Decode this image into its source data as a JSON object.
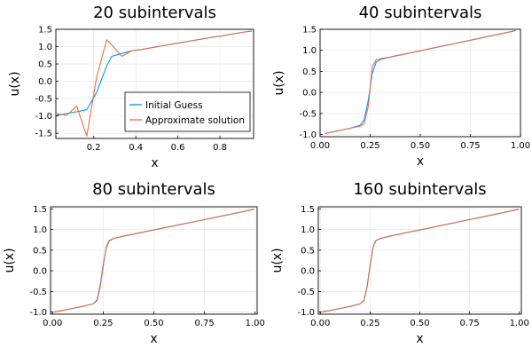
{
  "chart_data": [
    {
      "type": "line",
      "title": "20 subintervals",
      "xlabel": "x",
      "ylabel": "u(x)",
      "xlim": [
        0.02,
        0.96
      ],
      "ylim": [
        -1.65,
        1.5
      ],
      "xticks": [
        0.2,
        0.4,
        0.6,
        0.8
      ],
      "xtick_labels": [
        "0.2",
        "0.4",
        "0.6",
        "0.8"
      ],
      "yticks": [
        -1.5,
        -1.0,
        -0.5,
        0.0,
        0.5,
        1.0,
        1.5
      ],
      "ytick_labels": [
        "-1.5",
        "-1.0",
        "-0.5",
        "0.0",
        "0.5",
        "1.0",
        "1.5"
      ],
      "grid": true,
      "legend": "bottom-right",
      "series": [
        {
          "name": "Initial Guess",
          "color": "#009AFA",
          "x": [
            0.024,
            0.071,
            0.119,
            0.167,
            0.214,
            0.262,
            0.286,
            0.333,
            0.381,
            0.429,
            0.476,
            0.524,
            0.571,
            0.619,
            0.667,
            0.714,
            0.762,
            0.81,
            0.857,
            0.905,
            0.952
          ],
          "y": [
            -0.98,
            -0.93,
            -0.88,
            -0.82,
            -0.32,
            0.45,
            0.72,
            0.8,
            0.88,
            0.92,
            0.97,
            1.02,
            1.07,
            1.12,
            1.17,
            1.22,
            1.27,
            1.31,
            1.36,
            1.41,
            1.45
          ]
        },
        {
          "name": "Approximate solution",
          "color": "#E36F47",
          "x": [
            0.024,
            0.071,
            0.119,
            0.167,
            0.214,
            0.262,
            0.286,
            0.333,
            0.381,
            0.429,
            0.476,
            0.524,
            0.571,
            0.619,
            0.667,
            0.714,
            0.762,
            0.81,
            0.857,
            0.905,
            0.952
          ],
          "y": [
            -0.93,
            -0.98,
            -0.72,
            -1.58,
            0.12,
            1.2,
            1.05,
            0.72,
            0.88,
            0.92,
            0.97,
            1.02,
            1.07,
            1.12,
            1.17,
            1.22,
            1.27,
            1.31,
            1.36,
            1.41,
            1.45
          ]
        }
      ]
    },
    {
      "type": "line",
      "title": "40 subintervals",
      "xlabel": "x",
      "ylabel": "u(x)",
      "xlim": [
        0.0,
        1.0
      ],
      "ylim": [
        -1.05,
        1.5
      ],
      "xticks": [
        0.0,
        0.25,
        0.5,
        0.75,
        1.0
      ],
      "xtick_labels": [
        "0.00",
        "0.25",
        "0.50",
        "0.75",
        "1.00"
      ],
      "yticks": [
        -1.0,
        -0.5,
        0.0,
        0.5,
        1.0,
        1.5
      ],
      "ytick_labels": [
        "-1.0",
        "-0.5",
        "0.0",
        "0.5",
        "1.0",
        "1.5"
      ],
      "grid": true,
      "series": [
        {
          "color": "#009AFA",
          "x": [
            0.024,
            0.05,
            0.1,
            0.15,
            0.2,
            0.22,
            0.24,
            0.26,
            0.28,
            0.3,
            0.35,
            0.4,
            0.5,
            0.6,
            0.7,
            0.8,
            0.9,
            0.976
          ],
          "y": [
            -0.98,
            -0.95,
            -0.9,
            -0.85,
            -0.78,
            -0.65,
            -0.2,
            0.45,
            0.72,
            0.78,
            0.84,
            0.89,
            0.99,
            1.09,
            1.19,
            1.29,
            1.39,
            1.47
          ]
        },
        {
          "color": "#E36F47",
          "x": [
            0.024,
            0.05,
            0.1,
            0.15,
            0.2,
            0.22,
            0.24,
            0.26,
            0.28,
            0.3,
            0.35,
            0.4,
            0.5,
            0.6,
            0.7,
            0.8,
            0.9,
            0.976
          ],
          "y": [
            -0.98,
            -0.95,
            -0.9,
            -0.85,
            -0.8,
            -0.74,
            -0.35,
            0.6,
            0.78,
            0.8,
            0.84,
            0.89,
            0.99,
            1.09,
            1.19,
            1.29,
            1.39,
            1.47
          ]
        }
      ]
    },
    {
      "type": "line",
      "title": "80 subintervals",
      "xlabel": "x",
      "ylabel": "u(x)",
      "xlim": [
        -0.01,
        1.01
      ],
      "ylim": [
        -1.05,
        1.55
      ],
      "xticks": [
        0.0,
        0.25,
        0.5,
        0.75,
        1.0
      ],
      "xtick_labels": [
        "0.00",
        "0.25",
        "0.50",
        "0.75",
        "1.00"
      ],
      "yticks": [
        -1.0,
        -0.5,
        0.0,
        0.5,
        1.0,
        1.5
      ],
      "ytick_labels": [
        "-1.0",
        "-0.5",
        "0.0",
        "0.5",
        "1.0",
        "1.5"
      ],
      "grid": true,
      "series": [
        {
          "color": "#009AFA",
          "x": [
            0.006,
            0.05,
            0.1,
            0.15,
            0.2,
            0.22,
            0.235,
            0.25,
            0.265,
            0.28,
            0.3,
            0.35,
            0.4,
            0.5,
            0.6,
            0.7,
            0.8,
            0.9,
            0.994
          ],
          "y": [
            -1.0,
            -0.96,
            -0.91,
            -0.86,
            -0.8,
            -0.7,
            -0.35,
            0.15,
            0.55,
            0.72,
            0.78,
            0.84,
            0.89,
            0.99,
            1.09,
            1.19,
            1.29,
            1.39,
            1.49
          ]
        },
        {
          "color": "#E36F47",
          "x": [
            0.006,
            0.05,
            0.1,
            0.15,
            0.2,
            0.22,
            0.235,
            0.25,
            0.265,
            0.28,
            0.3,
            0.35,
            0.4,
            0.5,
            0.6,
            0.7,
            0.8,
            0.9,
            0.994
          ],
          "y": [
            -1.0,
            -0.96,
            -0.91,
            -0.86,
            -0.8,
            -0.72,
            -0.4,
            0.1,
            0.58,
            0.74,
            0.78,
            0.84,
            0.89,
            0.99,
            1.09,
            1.19,
            1.29,
            1.39,
            1.49
          ]
        }
      ]
    },
    {
      "type": "line",
      "title": "160 subintervals",
      "xlabel": "x",
      "ylabel": "u(x)",
      "xlim": [
        -0.01,
        1.01
      ],
      "ylim": [
        -1.05,
        1.55
      ],
      "xticks": [
        0.0,
        0.25,
        0.5,
        0.75,
        1.0
      ],
      "xtick_labels": [
        "0.00",
        "0.25",
        "0.50",
        "0.75",
        "1.00"
      ],
      "yticks": [
        -1.0,
        -0.5,
        0.0,
        0.5,
        1.0,
        1.5
      ],
      "ytick_labels": [
        "-1.0",
        "-0.5",
        "0.0",
        "0.5",
        "1.0",
        "1.5"
      ],
      "grid": true,
      "series": [
        {
          "color": "#009AFA",
          "x": [
            0.003,
            0.05,
            0.1,
            0.15,
            0.2,
            0.22,
            0.235,
            0.25,
            0.265,
            0.28,
            0.3,
            0.35,
            0.4,
            0.5,
            0.6,
            0.7,
            0.8,
            0.9,
            0.997
          ],
          "y": [
            -1.0,
            -0.96,
            -0.91,
            -0.86,
            -0.8,
            -0.71,
            -0.38,
            0.12,
            0.57,
            0.73,
            0.78,
            0.84,
            0.89,
            0.99,
            1.09,
            1.19,
            1.29,
            1.39,
            1.49
          ]
        },
        {
          "color": "#E36F47",
          "x": [
            0.003,
            0.05,
            0.1,
            0.15,
            0.2,
            0.22,
            0.235,
            0.25,
            0.265,
            0.28,
            0.3,
            0.35,
            0.4,
            0.5,
            0.6,
            0.7,
            0.8,
            0.9,
            0.997
          ],
          "y": [
            -1.0,
            -0.96,
            -0.91,
            -0.86,
            -0.8,
            -0.72,
            -0.4,
            0.11,
            0.58,
            0.74,
            0.78,
            0.84,
            0.89,
            0.99,
            1.09,
            1.19,
            1.29,
            1.39,
            1.49
          ]
        }
      ]
    }
  ]
}
